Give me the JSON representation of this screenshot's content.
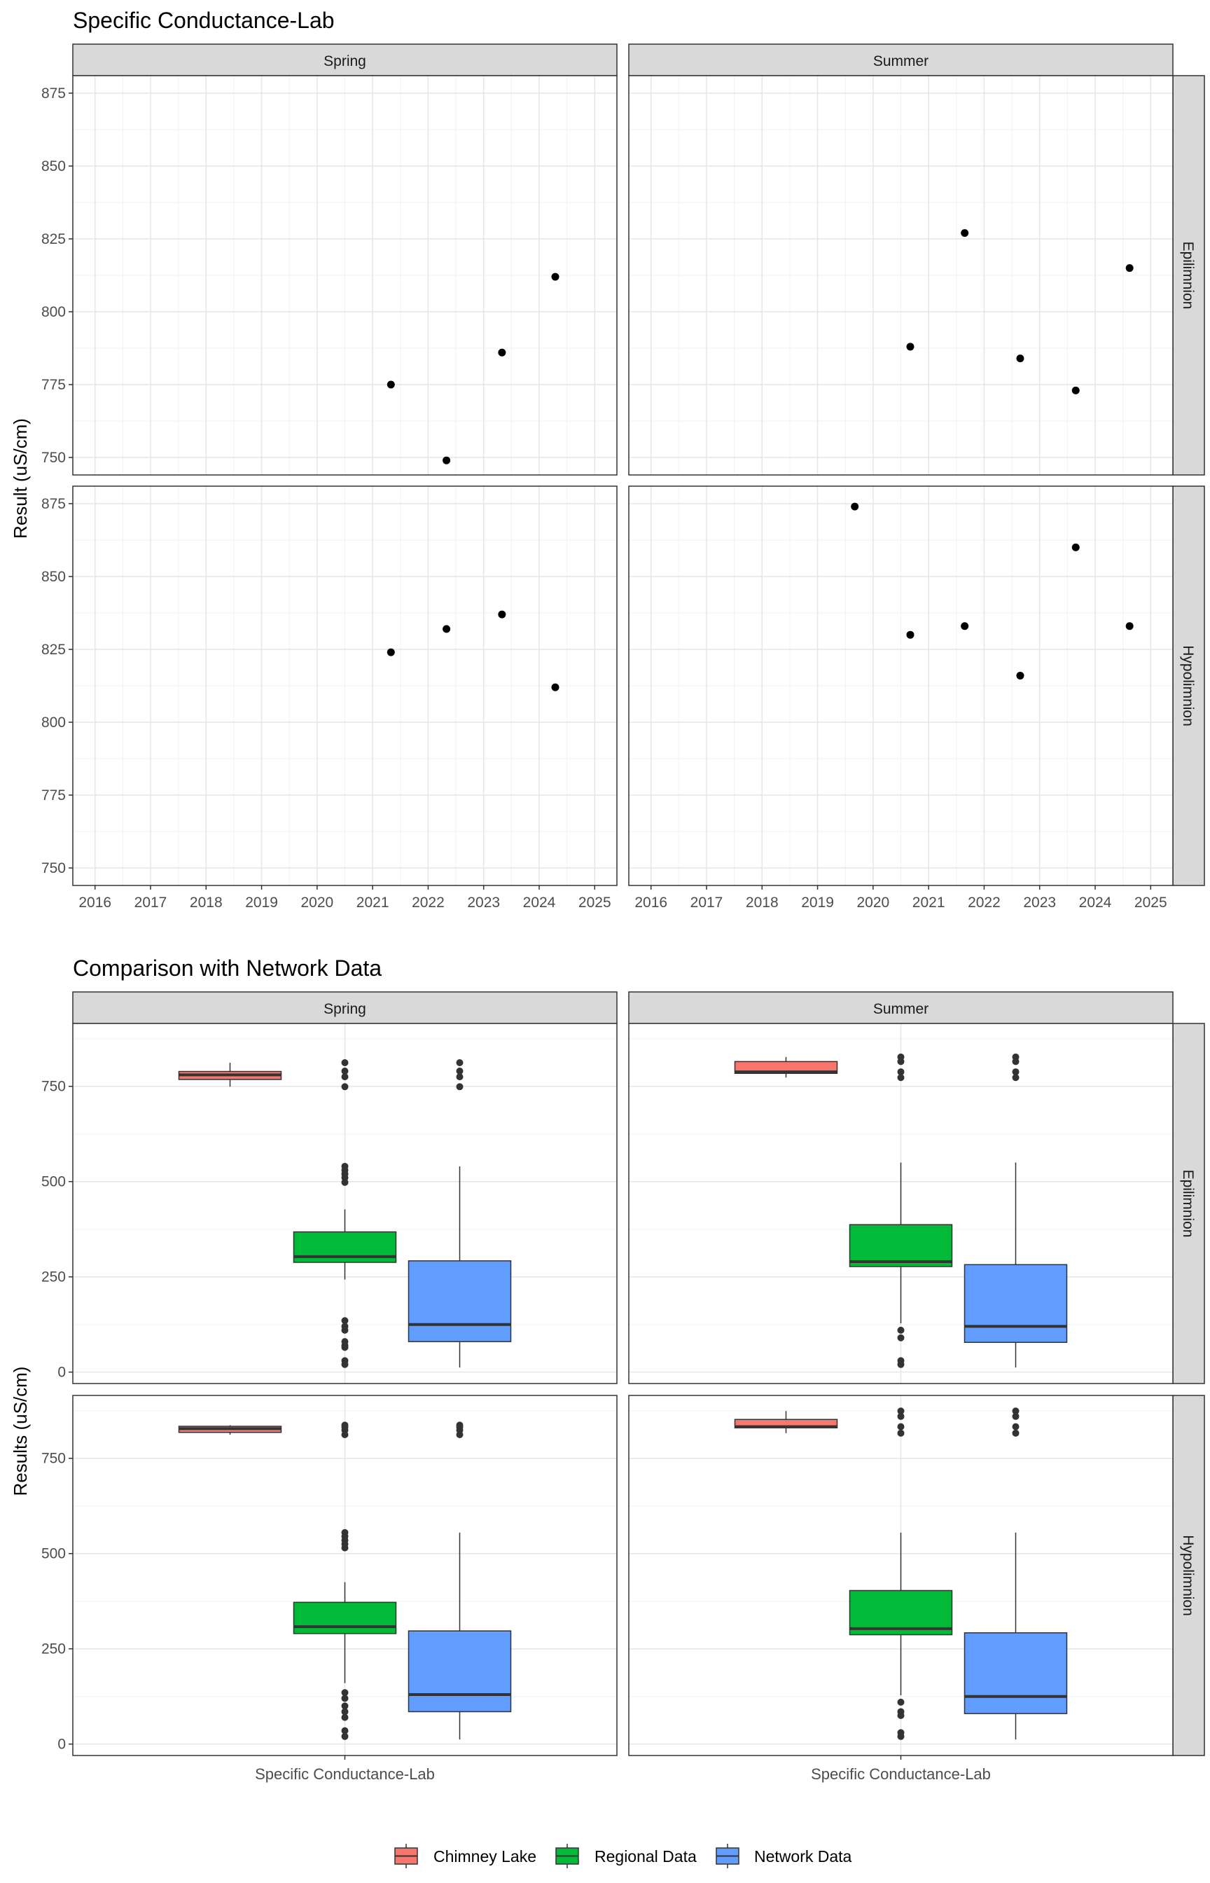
{
  "chart_data": [
    {
      "type": "scatter",
      "title": "Specific Conductance-Lab",
      "ylabel": "Result (uS/cm)",
      "xlabel": "",
      "x_ticks": [
        "2016",
        "2017",
        "2018",
        "2019",
        "2020",
        "2021",
        "2022",
        "2023",
        "2024",
        "2025"
      ],
      "y_ticks": [
        "750",
        "775",
        "800",
        "825",
        "850",
        "875"
      ],
      "xlim": [
        2015.6,
        2025.4
      ],
      "ylim": [
        744,
        881
      ],
      "grid": true,
      "facet_columns": [
        "Spring",
        "Summer"
      ],
      "facet_rows": [
        "Epilimnion",
        "Hypolimnion"
      ],
      "panels": [
        {
          "column": "Spring",
          "row": "Epilimnion",
          "points": [
            [
              2021.33,
              775
            ],
            [
              2022.33,
              749
            ],
            [
              2023.33,
              786
            ],
            [
              2024.29,
              812
            ]
          ]
        },
        {
          "column": "Summer",
          "row": "Epilimnion",
          "points": [
            [
              2020.67,
              788
            ],
            [
              2021.65,
              827
            ],
            [
              2022.65,
              784
            ],
            [
              2023.65,
              773
            ],
            [
              2024.62,
              815
            ]
          ]
        },
        {
          "column": "Spring",
          "row": "Hypolimnion",
          "points": [
            [
              2021.33,
              824
            ],
            [
              2022.33,
              832
            ],
            [
              2023.33,
              837
            ],
            [
              2024.29,
              812
            ]
          ]
        },
        {
          "column": "Summer",
          "row": "Hypolimnion",
          "points": [
            [
              2019.67,
              874
            ],
            [
              2020.67,
              830
            ],
            [
              2021.65,
              833
            ],
            [
              2022.65,
              816
            ],
            [
              2023.65,
              860
            ],
            [
              2024.62,
              833
            ]
          ]
        }
      ]
    },
    {
      "type": "boxplot",
      "title": "Comparison with Network Data",
      "ylabel": "Results (uS/cm)",
      "xlabel": "",
      "categories": [
        "Specific Conductance-Lab"
      ],
      "y_ticks": [
        "0",
        "250",
        "500",
        "750"
      ],
      "ylim": [
        -30,
        915
      ],
      "grid": true,
      "facet_columns": [
        "Spring",
        "Summer"
      ],
      "facet_rows": [
        "Epilimnion",
        "Hypolimnion"
      ],
      "legend": {
        "position": "bottom",
        "items": [
          {
            "label": "Chimney Lake",
            "color": "#F8766D"
          },
          {
            "label": "Regional Data",
            "color": "#00BA38"
          },
          {
            "label": "Network Data",
            "color": "#619CFF"
          }
        ]
      },
      "panels": [
        {
          "column": "Spring",
          "row": "Epilimnion",
          "boxes": [
            {
              "series": "Chimney Lake",
              "min": 749,
              "q1": 768,
              "median": 780,
              "q3": 789,
              "max": 812,
              "outliers": []
            },
            {
              "series": "Regional Data",
              "min": 243,
              "q1": 288,
              "median": 303,
              "q3": 368,
              "max": 427,
              "outliers": [
                812,
                790,
                775,
                749,
                540,
                530,
                520,
                510,
                498,
                135,
                120,
                110,
                80,
                70,
                65,
                30,
                20
              ]
            },
            {
              "series": "Network Data",
              "min": 12,
              "q1": 80,
              "median": 125,
              "q3": 292,
              "max": 540,
              "outliers": [
                812,
                790,
                775,
                749
              ]
            }
          ]
        },
        {
          "column": "Summer",
          "row": "Epilimnion",
          "boxes": [
            {
              "series": "Chimney Lake",
              "min": 773,
              "q1": 784,
              "median": 788,
              "q3": 815,
              "max": 827,
              "outliers": []
            },
            {
              "series": "Regional Data",
              "min": 128,
              "q1": 277,
              "median": 290,
              "q3": 387,
              "max": 550,
              "outliers": [
                827,
                815,
                788,
                773,
                110,
                90,
                30,
                20
              ]
            },
            {
              "series": "Network Data",
              "min": 12,
              "q1": 78,
              "median": 120,
              "q3": 282,
              "max": 550,
              "outliers": [
                827,
                815,
                788,
                773
              ]
            }
          ]
        },
        {
          "column": "Spring",
          "row": "Hypolimnion",
          "boxes": [
            {
              "series": "Chimney Lake",
              "min": 812,
              "q1": 818,
              "median": 828,
              "q3": 834,
              "max": 837,
              "outliers": []
            },
            {
              "series": "Regional Data",
              "min": 160,
              "q1": 290,
              "median": 308,
              "q3": 372,
              "max": 425,
              "outliers": [
                837,
                832,
                824,
                812,
                555,
                545,
                535,
                525,
                515,
                135,
                120,
                100,
                85,
                70,
                35,
                20
              ]
            },
            {
              "series": "Network Data",
              "min": 12,
              "q1": 85,
              "median": 130,
              "q3": 297,
              "max": 555,
              "outliers": [
                837,
                832,
                824,
                812
              ]
            }
          ]
        },
        {
          "column": "Summer",
          "row": "Hypolimnion",
          "boxes": [
            {
              "series": "Chimney Lake",
              "min": 816,
              "q1": 830,
              "median": 833,
              "q3": 852,
              "max": 874,
              "outliers": []
            },
            {
              "series": "Regional Data",
              "min": 128,
              "q1": 287,
              "median": 303,
              "q3": 403,
              "max": 555,
              "outliers": [
                874,
                860,
                833,
                816,
                110,
                85,
                75,
                30,
                20
              ]
            },
            {
              "series": "Network Data",
              "min": 12,
              "q1": 80,
              "median": 125,
              "q3": 292,
              "max": 555,
              "outliers": [
                874,
                860,
                833,
                816
              ]
            }
          ]
        }
      ]
    }
  ]
}
